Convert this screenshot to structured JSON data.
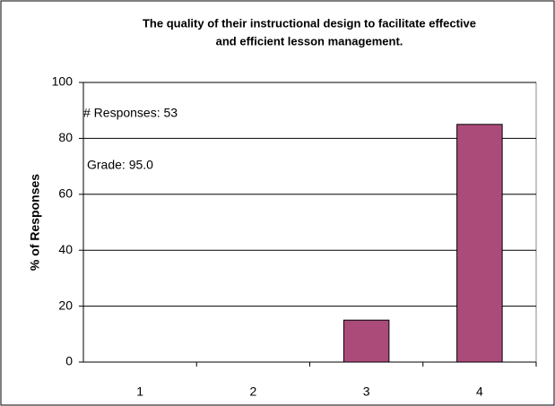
{
  "chart_data": {
    "type": "bar",
    "title": [
      "The quality of their instructional design to facilitate effective",
      "and efficient lesson management."
    ],
    "y_label": "% of Responses",
    "annotations": [
      "# Responses: 53",
      "Grade:  95.0"
    ],
    "categories": [
      "1",
      "2",
      "3",
      "4"
    ],
    "values": [
      0,
      0,
      15,
      85
    ],
    "color": "#ab4b7a",
    "ylim": [
      0,
      100
    ],
    "yticks": [
      0,
      20,
      40,
      60,
      80,
      100
    ],
    "grid": true
  }
}
